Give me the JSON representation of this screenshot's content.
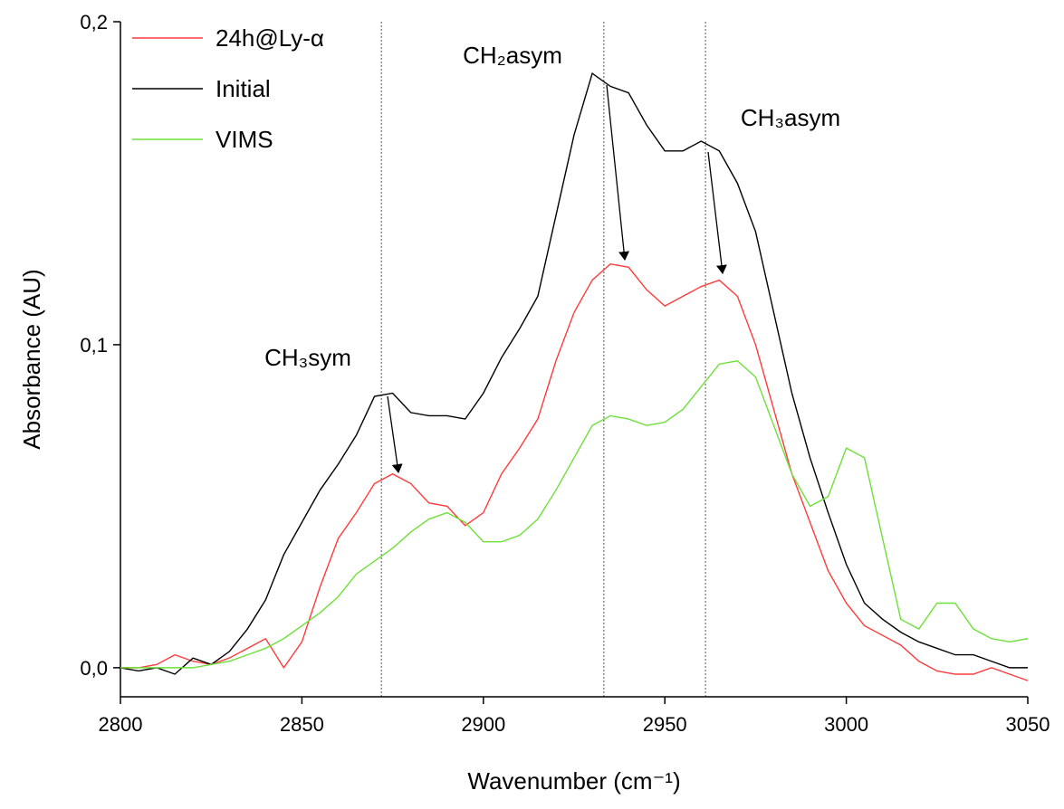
{
  "chart_data": {
    "type": "line",
    "xlabel": "Wavenumber (cm⁻¹)",
    "ylabel": "Absorbance (AU)",
    "annotations": [
      "CH₃sym",
      "CH₂asym",
      "CH₃asym"
    ],
    "vlines": [
      2871.9,
      2933.2,
      2961.2
    ],
    "x": [
      2800,
      2805,
      2810,
      2815,
      2820,
      2825,
      2830,
      2835,
      2840,
      2845,
      2850,
      2855,
      2860,
      2865,
      2870,
      2875,
      2880,
      2885,
      2890,
      2895,
      2900,
      2905,
      2910,
      2915,
      2920,
      2925,
      2930,
      2935,
      2940,
      2945,
      2950,
      2955,
      2960,
      2965,
      2970,
      2975,
      2980,
      2985,
      2990,
      2995,
      3000,
      3005,
      3010,
      3015,
      3020,
      3025,
      3030,
      3035,
      3040,
      3045,
      3050
    ],
    "series": [
      {
        "name": "24h@Ly-α",
        "color": "#ff3b3b",
        "values": [
          0,
          0,
          0.001,
          0.004,
          0.002,
          0.001,
          0.003,
          0.006,
          0.009,
          0.0,
          0.008,
          0.025,
          0.04,
          0.048,
          0.057,
          0.06,
          0.057,
          0.051,
          0.05,
          0.044,
          0.048,
          0.06,
          0.068,
          0.077,
          0.095,
          0.11,
          0.12,
          0.125,
          0.124,
          0.117,
          0.112,
          0.115,
          0.118,
          0.12,
          0.115,
          0.1,
          0.08,
          0.06,
          0.045,
          0.03,
          0.02,
          0.013,
          0.01,
          0.007,
          0.002,
          -0.001,
          -0.002,
          -0.002,
          0.0,
          -0.002,
          -0.004
        ]
      },
      {
        "name": "Initial",
        "color": "#000000",
        "values": [
          0,
          -0.001,
          0,
          -0.002,
          0.003,
          0.001,
          0.005,
          0.012,
          0.021,
          0.035,
          0.045,
          0.055,
          0.063,
          0.072,
          0.084,
          0.085,
          0.079,
          0.078,
          0.078,
          0.077,
          0.085,
          0.096,
          0.105,
          0.115,
          0.14,
          0.165,
          0.184,
          0.18,
          0.178,
          0.168,
          0.16,
          0.16,
          0.163,
          0.16,
          0.15,
          0.135,
          0.11,
          0.085,
          0.065,
          0.048,
          0.032,
          0.02,
          0.015,
          0.011,
          0.008,
          0.006,
          0.004,
          0.004,
          0.002,
          0,
          0
        ]
      },
      {
        "name": "VIMS",
        "color": "#6ee03a",
        "values": [
          0,
          0,
          0,
          0,
          0,
          0.001,
          0.002,
          0.004,
          0.006,
          0.009,
          0.013,
          0.017,
          0.022,
          0.029,
          0.033,
          0.037,
          0.042,
          0.046,
          0.048,
          0.045,
          0.039,
          0.039,
          0.041,
          0.046,
          0.055,
          0.065,
          0.075,
          0.078,
          0.077,
          0.075,
          0.076,
          0.08,
          0.087,
          0.094,
          0.095,
          0.09,
          0.075,
          0.06,
          0.05,
          0.053,
          0.068,
          0.065,
          0.04,
          0.015,
          0.012,
          0.02,
          0.02,
          0.012,
          0.009,
          0.008,
          0.009
        ]
      }
    ],
    "xlim": [
      2800,
      3050
    ],
    "xticks": [
      2800,
      2850,
      2900,
      2950,
      3000,
      3050
    ],
    "ylim": [
      -0.009,
      0.2
    ],
    "yticks": [
      {
        "value": 0,
        "label": "0,0"
      },
      {
        "value": 0.1,
        "label": "0,1"
      },
      {
        "value": 0.2,
        "label": "0,2"
      }
    ],
    "legend": "upper left"
  }
}
